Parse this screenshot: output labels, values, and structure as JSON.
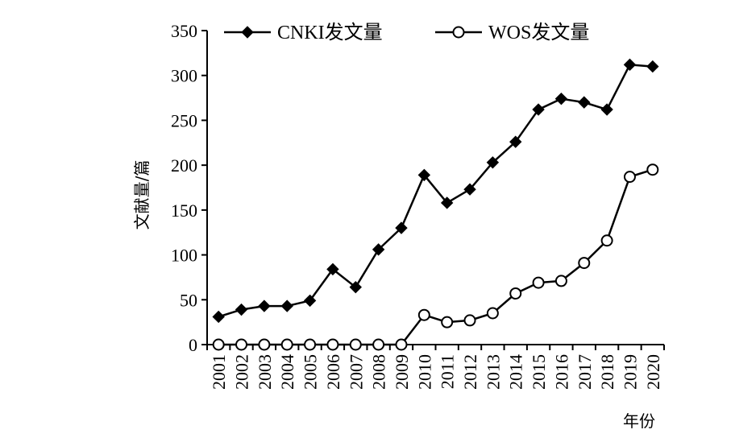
{
  "chart_data": {
    "type": "line",
    "xlabel": "年份",
    "ylabel": "文献量/篇",
    "ylim": [
      0,
      350
    ],
    "yticks": [
      0,
      50,
      100,
      150,
      200,
      250,
      300,
      350
    ],
    "grid": false,
    "legend_position": "top",
    "categories": [
      "2001",
      "2002",
      "2003",
      "2004",
      "2005",
      "2006",
      "2007",
      "2008",
      "2009",
      "2010",
      "2011",
      "2012",
      "2013",
      "2014",
      "2015",
      "2016",
      "2017",
      "2018",
      "2019",
      "2020"
    ],
    "series": [
      {
        "name": "CNKI发文量",
        "marker": "filled-diamond",
        "color": "#000000",
        "values": [
          31,
          39,
          43,
          43,
          49,
          84,
          64,
          106,
          130,
          189,
          158,
          173,
          203,
          226,
          262,
          274,
          270,
          262,
          312,
          310
        ]
      },
      {
        "name": "WOS发文量",
        "marker": "open-circle",
        "color": "#000000",
        "values": [
          0,
          0,
          0,
          0,
          0,
          0,
          0,
          0,
          0,
          33,
          25,
          27,
          35,
          57,
          69,
          71,
          91,
          116,
          187,
          195
        ]
      }
    ]
  }
}
